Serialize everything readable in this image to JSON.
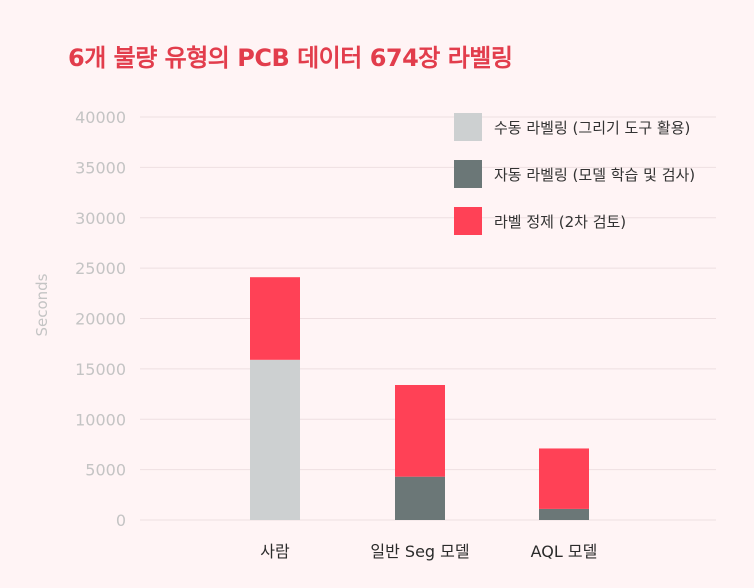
{
  "chart_data": {
    "type": "bar",
    "stacked": true,
    "title": "6개 불량 유형의 PCB 데이터 674장 라벨링",
    "ylabel": "Seconds",
    "xlabel": "",
    "ylim": [
      0,
      40000
    ],
    "yticks": [
      "40000",
      "35000",
      "30000",
      "25000",
      "20000",
      "15000",
      "10000",
      "5000",
      "0"
    ],
    "categories": [
      "사람",
      "일반 Seg 모델",
      "AQL 모델"
    ],
    "series": [
      {
        "name": "수동 라벨링 (그리기 도구 활용)",
        "color": "#cdd0d1",
        "values": [
          15900,
          0,
          0
        ]
      },
      {
        "name": "자동 라벨링 (모델 학습 및 검사)",
        "color": "#6b7777",
        "values": [
          0,
          4300,
          1100
        ]
      },
      {
        "name": "라벨 정제 (2차 검토)",
        "color": "#ff4156",
        "values": [
          8200,
          9100,
          6000
        ]
      }
    ],
    "grid": true,
    "legend_position": "top-right"
  }
}
